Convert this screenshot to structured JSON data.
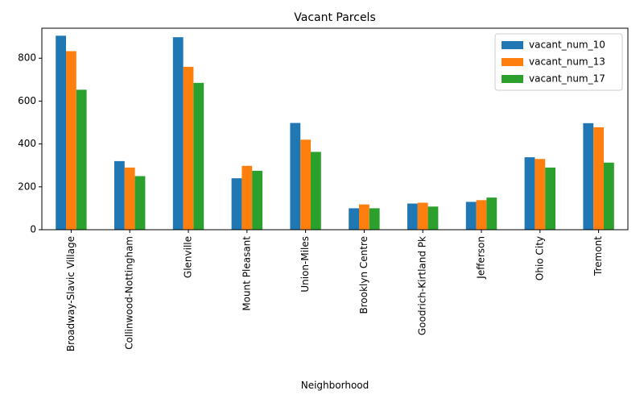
{
  "chart_data": {
    "type": "bar",
    "title": "Vacant Parcels",
    "xlabel": "Neighborhood",
    "ylabel": "",
    "ylim": [
      0,
      940
    ],
    "yticks": [
      0,
      200,
      400,
      600,
      800
    ],
    "categories": [
      "Broadway-Slavic Village",
      "Collinwood-Nottingham",
      "Glenville",
      "Mount Pleasant",
      "Union-Miles",
      "Brooklyn Centre",
      "Goodrich-Kirtland Pk",
      "Jefferson",
      "Ohio City",
      "Tremont"
    ],
    "series": [
      {
        "name": "vacant_num_10",
        "color": "#1f77b4",
        "values": [
          905,
          320,
          898,
          240,
          498,
          100,
          122,
          130,
          338,
          497
        ]
      },
      {
        "name": "vacant_num_13",
        "color": "#ff7f0e",
        "values": [
          833,
          290,
          760,
          298,
          420,
          118,
          126,
          138,
          330,
          478
        ]
      },
      {
        "name": "vacant_num_17",
        "color": "#2ca02c",
        "values": [
          653,
          250,
          685,
          275,
          363,
          100,
          108,
          150,
          290,
          313
        ]
      }
    ],
    "legend_position": "top-right",
    "grid": false
  }
}
